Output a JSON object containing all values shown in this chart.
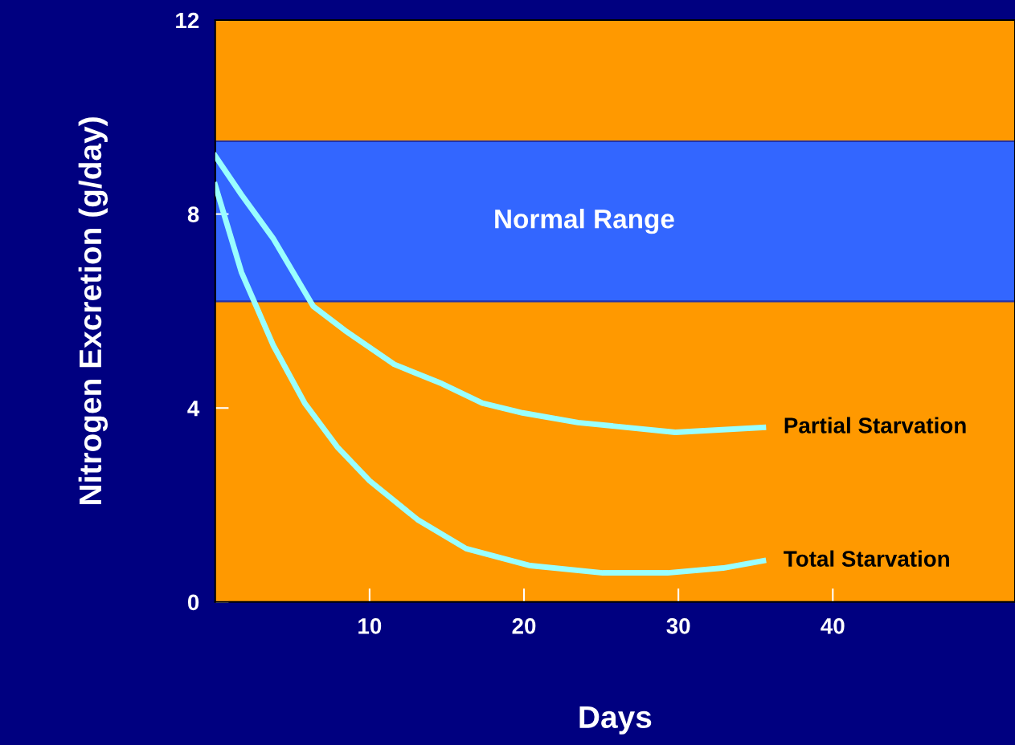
{
  "chart_data": {
    "type": "line",
    "xlabel": "Days",
    "ylabel": "Nitrogen Excretion (g/day)",
    "series": [
      {
        "name": "Partial Starvation",
        "color": "#99ffff",
        "x": [
          0,
          1.7,
          3.75,
          6.35,
          8.4,
          11.6,
          14.7,
          17.3,
          19.9,
          23.5,
          29.8,
          35.5
        ],
        "values": [
          9.2,
          8.4,
          7.5,
          6.1,
          5.6,
          4.9,
          4.5,
          4.1,
          3.9,
          3.7,
          3.5,
          3.6
        ]
      },
      {
        "name": "Total Starvation",
        "color": "#99ffff",
        "x": [
          0,
          1.7,
          3.75,
          5.8,
          7.9,
          10,
          13.1,
          16.25,
          20.4,
          25.1,
          29.3,
          32.9,
          35.5
        ],
        "values": [
          8.6,
          6.8,
          5.3,
          4.1,
          3.2,
          2.5,
          1.7,
          1.1,
          0.75,
          0.6,
          0.6,
          0.7,
          0.85
        ]
      }
    ],
    "bands": [
      {
        "axis": "y",
        "from": 6.2,
        "to": 9.5,
        "label": "Normal Range",
        "color": "#3366ff"
      }
    ],
    "xlim": [
      0,
      51.8
    ],
    "ylim": [
      0,
      12
    ],
    "xticks": [
      10,
      20,
      30,
      40
    ],
    "yticks": [
      0,
      4,
      8,
      12
    ],
    "grid": false,
    "legend": false,
    "marker": "none",
    "line_style": "solid"
  }
}
